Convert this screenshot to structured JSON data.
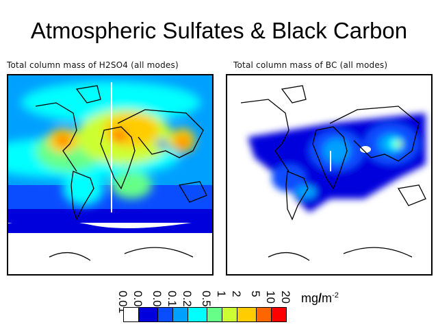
{
  "title": "Atmospheric Sulfates & Black Carbon",
  "panels": [
    {
      "title": "Total column mass of H2SO4 (all modes)"
    },
    {
      "title": "Total column mass of BC (all modes)"
    }
  ],
  "colorbar": {
    "ticks": [
      "0.01",
      "0.02",
      "0.05",
      "0.1",
      "0.2",
      "0.5",
      "1",
      "2",
      "5",
      "10",
      "20"
    ],
    "colors": [
      "#ffffff",
      "#0000dd",
      "#0a4dff",
      "#00a0ff",
      "#00ffff",
      "#66ff88",
      "#ccff33",
      "#ffcc00",
      "#ff6600",
      "#ff0000"
    ],
    "unit_base": "mg",
    "unit_sep": "/",
    "unit_m": "m",
    "unit_exp": "-2"
  }
}
